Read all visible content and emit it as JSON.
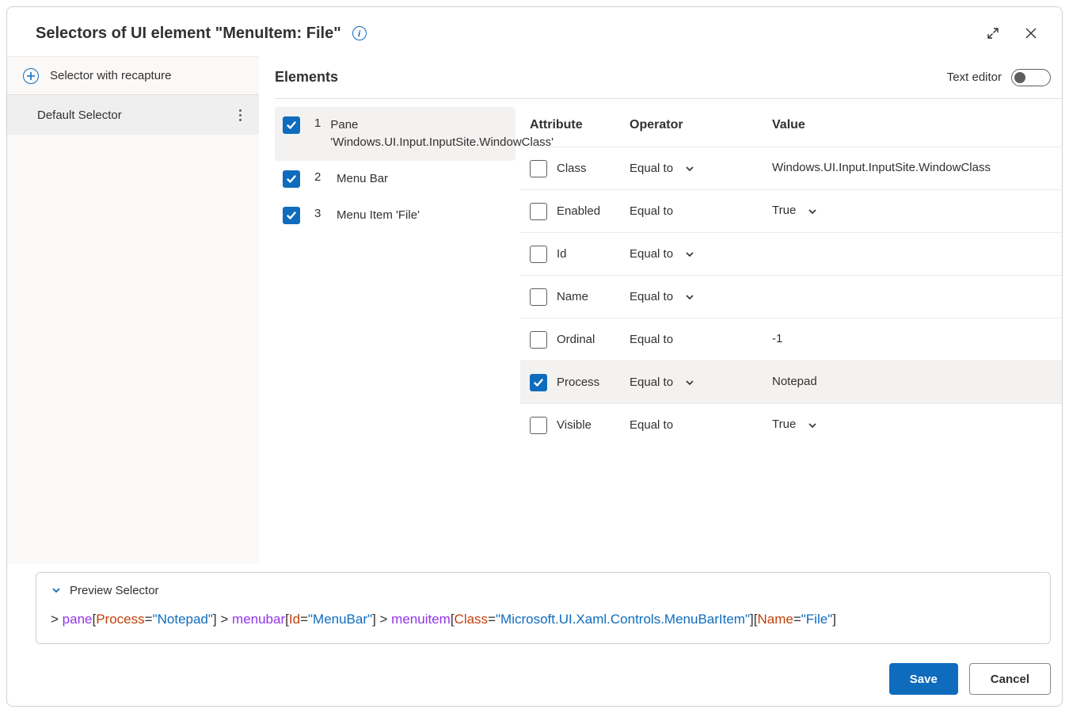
{
  "colors": {
    "primary": "#0f6cbd",
    "border": "#d1d1d1",
    "text": "#323130",
    "sidebar_bg": "#faf9f8",
    "row_selected": "#f3f2f1",
    "token_element": "#9333ea",
    "token_attr": "#c2410c",
    "token_value": "#0f6cbd"
  },
  "header": {
    "title": "Selectors of UI element \"MenuItem: File\""
  },
  "sidebar": {
    "recapture_label": "Selector with recapture",
    "items": [
      {
        "label": "Default Selector",
        "selected": true
      }
    ]
  },
  "main": {
    "elements_title": "Elements",
    "text_editor_label": "Text editor",
    "text_editor_on": false
  },
  "elements": [
    {
      "index": 1,
      "label": "Pane 'Windows.UI.Input.InputSite.WindowClass'",
      "checked": true,
      "selected": true
    },
    {
      "index": 2,
      "label": "Menu Bar",
      "checked": true,
      "selected": false
    },
    {
      "index": 3,
      "label": "Menu Item 'File'",
      "checked": true,
      "selected": false
    }
  ],
  "attr_headers": {
    "attribute": "Attribute",
    "operator": "Operator",
    "value": "Value"
  },
  "attributes": [
    {
      "name": "Class",
      "checked": false,
      "operator": "Equal to",
      "op_dropdown": true,
      "value": "Windows.UI.Input.InputSite.WindowClass",
      "val_dropdown": false,
      "highlighted": false
    },
    {
      "name": "Enabled",
      "checked": false,
      "operator": "Equal to",
      "op_dropdown": false,
      "value": "True",
      "val_dropdown": true,
      "highlighted": false
    },
    {
      "name": "Id",
      "checked": false,
      "operator": "Equal to",
      "op_dropdown": true,
      "value": "",
      "val_dropdown": false,
      "highlighted": false
    },
    {
      "name": "Name",
      "checked": false,
      "operator": "Equal to",
      "op_dropdown": true,
      "value": "",
      "val_dropdown": false,
      "highlighted": false
    },
    {
      "name": "Ordinal",
      "checked": false,
      "operator": "Equal to",
      "op_dropdown": false,
      "value": "-1",
      "val_dropdown": false,
      "highlighted": false
    },
    {
      "name": "Process",
      "checked": true,
      "operator": "Equal to",
      "op_dropdown": true,
      "value": "Notepad",
      "val_dropdown": false,
      "highlighted": true
    },
    {
      "name": "Visible",
      "checked": false,
      "operator": "Equal to",
      "op_dropdown": false,
      "value": "True",
      "val_dropdown": true,
      "highlighted": false
    }
  ],
  "preview": {
    "label": "Preview Selector",
    "tokens": [
      {
        "t": "gt",
        "v": "> "
      },
      {
        "t": "el",
        "v": "pane"
      },
      {
        "t": "br",
        "v": "["
      },
      {
        "t": "attr",
        "v": "Process"
      },
      {
        "t": "eq",
        "v": "="
      },
      {
        "t": "val",
        "v": "\"Notepad\""
      },
      {
        "t": "br",
        "v": "]"
      },
      {
        "t": "gt",
        "v": " > "
      },
      {
        "t": "el",
        "v": "menubar"
      },
      {
        "t": "br",
        "v": "["
      },
      {
        "t": "attr",
        "v": "Id"
      },
      {
        "t": "eq",
        "v": "="
      },
      {
        "t": "val",
        "v": "\"MenuBar\""
      },
      {
        "t": "br",
        "v": "]"
      },
      {
        "t": "gt",
        "v": " > "
      },
      {
        "t": "el",
        "v": "menuitem"
      },
      {
        "t": "br",
        "v": "["
      },
      {
        "t": "attr",
        "v": "Class"
      },
      {
        "t": "eq",
        "v": "="
      },
      {
        "t": "val",
        "v": "\"Microsoft.UI.Xaml.Controls.MenuBarItem\""
      },
      {
        "t": "br",
        "v": "]"
      },
      {
        "t": "br",
        "v": "["
      },
      {
        "t": "attr",
        "v": "Name"
      },
      {
        "t": "eq",
        "v": "="
      },
      {
        "t": "val",
        "v": "\"File\""
      },
      {
        "t": "br",
        "v": "]"
      }
    ]
  },
  "footer": {
    "save": "Save",
    "cancel": "Cancel"
  }
}
